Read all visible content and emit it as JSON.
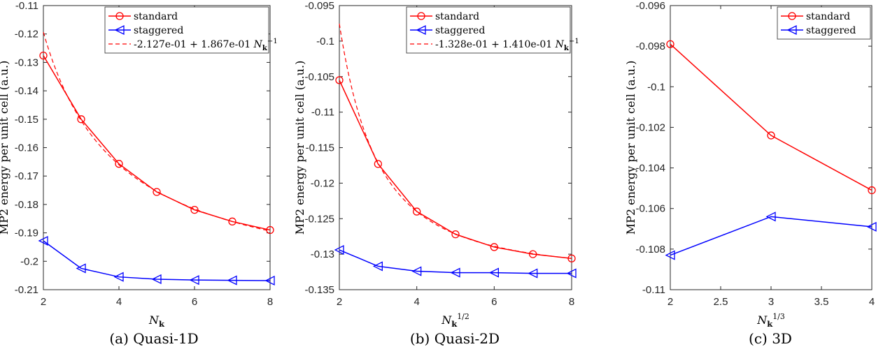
{
  "colors": {
    "standard": "#ff0000",
    "staggered": "#0000ff",
    "fit": "#ff0000",
    "axis": "#262626"
  },
  "chart_data": [
    {
      "type": "line",
      "caption": "(a) Quasi-1D",
      "xlabel": "N_k",
      "ylabel": "MP2 energy per unit cell (a.u.)",
      "xlim": [
        2,
        8
      ],
      "ylim": [
        -0.21,
        -0.11
      ],
      "xticks": [
        2,
        4,
        6,
        8
      ],
      "xtick_labels": [
        "2",
        "4",
        "6",
        "8"
      ],
      "yticks": [
        -0.21,
        -0.2,
        -0.19,
        -0.18,
        -0.17,
        -0.16,
        -0.15,
        -0.14,
        -0.13,
        -0.12,
        -0.11
      ],
      "ytick_labels": [
        "-0.21",
        "-0.2",
        "-0.19",
        "-0.18",
        "-0.17",
        "-0.16",
        "-0.15",
        "-0.14",
        "-0.13",
        "-0.12",
        "-0.11"
      ],
      "legend_position": "top-right",
      "series": [
        {
          "name": "standard",
          "marker": "circle",
          "x": [
            2,
            3,
            4,
            5,
            6,
            7,
            8
          ],
          "y": [
            -0.1276,
            -0.15,
            -0.1657,
            -0.1756,
            -0.1819,
            -0.186,
            -0.189
          ]
        },
        {
          "name": "staggered",
          "marker": "triangle-left",
          "x": [
            2,
            3,
            4,
            5,
            6,
            7,
            8
          ],
          "y": [
            -0.1928,
            -0.2025,
            -0.2055,
            -0.2063,
            -0.2066,
            -0.2067,
            -0.2068
          ]
        }
      ],
      "fit": {
        "name": "-2.127e-01 + 1.867e-01 N_k^-1",
        "a": -0.2127,
        "b": 0.1867,
        "power": -1,
        "style": "dashed"
      }
    },
    {
      "type": "line",
      "caption": "(b) Quasi-2D",
      "xlabel": "N_k^1/2",
      "ylabel": "MP2 energy per unit cell (a.u.)",
      "xlim": [
        2,
        8
      ],
      "ylim": [
        -0.135,
        -0.095
      ],
      "xticks": [
        2,
        4,
        6,
        8
      ],
      "xtick_labels": [
        "2",
        "4",
        "6",
        "8"
      ],
      "yticks": [
        -0.135,
        -0.13,
        -0.125,
        -0.12,
        -0.115,
        -0.11,
        -0.105,
        -0.1,
        -0.095
      ],
      "ytick_labels": [
        "-0.135",
        "-0.13",
        "-0.125",
        "-0.12",
        "-0.115",
        "-0.11",
        "-0.105",
        "-0.1",
        "-0.095"
      ],
      "legend_position": "top-right",
      "series": [
        {
          "name": "standard",
          "marker": "circle",
          "x": [
            2,
            3,
            4,
            5,
            6,
            7,
            8
          ],
          "y": [
            -0.1055,
            -0.1173,
            -0.124,
            -0.1272,
            -0.129,
            -0.13,
            -0.1306
          ]
        },
        {
          "name": "staggered",
          "marker": "triangle-left",
          "x": [
            2,
            3,
            4,
            5,
            6,
            7,
            8
          ],
          "y": [
            -0.1294,
            -0.1317,
            -0.1324,
            -0.1326,
            -0.1326,
            -0.1327,
            -0.1327
          ]
        }
      ],
      "fit": {
        "name": "-1.328e-01 + 1.410e-01 N_k^-1",
        "a": -0.1328,
        "b": 0.141,
        "power": -2,
        "style": "dashed"
      }
    },
    {
      "type": "line",
      "caption": "(c) 3D",
      "xlabel": "N_k^1/3",
      "ylabel": "MP2 energy per unit cell (a.u.)",
      "xlim": [
        2,
        4
      ],
      "ylim": [
        -0.11,
        -0.096
      ],
      "xticks": [
        2,
        2.5,
        3,
        3.5,
        4
      ],
      "xtick_labels": [
        "2",
        "2.5",
        "3",
        "3.5",
        "4"
      ],
      "yticks": [
        -0.11,
        -0.108,
        -0.106,
        -0.104,
        -0.102,
        -0.1,
        -0.098,
        -0.096
      ],
      "ytick_labels": [
        "-0.11",
        "-0.108",
        "-0.106",
        "-0.104",
        "-0.102",
        "-0.1",
        "-0.098",
        "-0.096"
      ],
      "legend_position": "top-right",
      "series": [
        {
          "name": "standard",
          "marker": "circle",
          "x": [
            2,
            3,
            4
          ],
          "y": [
            -0.0979,
            -0.1024,
            -0.1051
          ]
        },
        {
          "name": "staggered",
          "marker": "triangle-left",
          "x": [
            2,
            3,
            4
          ],
          "y": [
            -0.1083,
            -0.1064,
            -0.1069
          ]
        }
      ]
    }
  ]
}
